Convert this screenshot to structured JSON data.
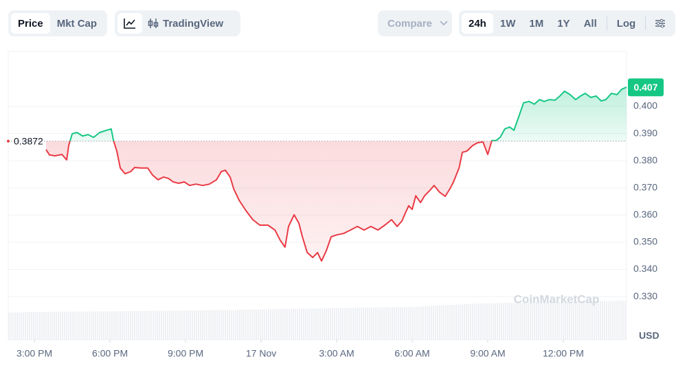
{
  "toolbar": {
    "price": "Price",
    "mkt_cap": "Mkt Cap",
    "trading_view": "TradingView",
    "compare": "Compare",
    "ranges": [
      "24h",
      "1W",
      "1M",
      "1Y",
      "All"
    ],
    "log": "Log"
  },
  "chart_data": {
    "type": "line",
    "currency": "USD",
    "watermark": "CoinMarketCap",
    "color_up": "#16c784",
    "color_down": "#ea3943",
    "reference_line": 0.3872,
    "current_price": 0.407,
    "xlim": [
      13.96,
      38.51
    ],
    "ylim": [
      0.3141,
      0.4202
    ],
    "xticks": [
      {
        "value": 15,
        "label": "3:00 PM"
      },
      {
        "value": 18,
        "label": "6:00 PM"
      },
      {
        "value": 21,
        "label": "9:00 PM"
      },
      {
        "value": 24,
        "label": "17 Nov"
      },
      {
        "value": 27,
        "label": "3:00 AM"
      },
      {
        "value": 30,
        "label": "6:00 AM"
      },
      {
        "value": 33,
        "label": "9:00 AM"
      },
      {
        "value": 36,
        "label": "12:00 PM"
      }
    ],
    "yticks": [
      {
        "value": 0.33,
        "label": "0.330"
      },
      {
        "value": 0.34,
        "label": "0.340"
      },
      {
        "value": 0.35,
        "label": "0.350"
      },
      {
        "value": 0.36,
        "label": "0.360"
      },
      {
        "value": 0.37,
        "label": "0.370"
      },
      {
        "value": 0.38,
        "label": "0.380"
      },
      {
        "value": 0.39,
        "label": "0.390"
      },
      {
        "value": 0.4,
        "label": "0.400"
      }
    ],
    "grid": true,
    "x": [
      15.46,
      15.6,
      15.82,
      16.09,
      16.28,
      16.36,
      16.5,
      16.69,
      16.91,
      17.13,
      17.35,
      17.59,
      17.86,
      18.05,
      18.14,
      18.27,
      18.41,
      18.6,
      18.82,
      18.98,
      19.23,
      19.5,
      19.69,
      19.91,
      20.13,
      20.32,
      20.51,
      20.73,
      20.95,
      21.16,
      21.41,
      21.68,
      21.95,
      22.23,
      22.42,
      22.58,
      22.77,
      22.91,
      23.13,
      23.4,
      23.67,
      23.95,
      24.27,
      24.55,
      24.76,
      24.95,
      25.09,
      25.31,
      25.5,
      25.64,
      25.83,
      26.05,
      26.24,
      26.4,
      26.59,
      26.78,
      27,
      27.27,
      27.55,
      27.82,
      28.09,
      28.36,
      28.64,
      28.91,
      29.18,
      29.4,
      29.59,
      29.73,
      29.86,
      30,
      30.14,
      30.33,
      30.49,
      30.68,
      30.87,
      31.09,
      31.31,
      31.5,
      31.64,
      31.86,
      31.99,
      32.18,
      32.4,
      32.59,
      32.81,
      33,
      33.16,
      33.33,
      33.49,
      33.68,
      33.87,
      34.04,
      34.23,
      34.42,
      34.64,
      34.85,
      35.05,
      35.24,
      35.45,
      35.67,
      35.86,
      36.05,
      36.27,
      36.49,
      36.68,
      36.87,
      37.09,
      37.31,
      37.5,
      37.69,
      37.91,
      38.13,
      38.32,
      38.51
    ],
    "values": [
      0.3841,
      0.3821,
      0.3818,
      0.3823,
      0.3803,
      0.3856,
      0.3899,
      0.3904,
      0.3891,
      0.3896,
      0.3886,
      0.3904,
      0.3912,
      0.3917,
      0.3874,
      0.3836,
      0.3773,
      0.3752,
      0.376,
      0.3775,
      0.3773,
      0.3773,
      0.3747,
      0.373,
      0.374,
      0.3735,
      0.3722,
      0.3717,
      0.3722,
      0.3709,
      0.3714,
      0.3709,
      0.3714,
      0.373,
      0.376,
      0.3765,
      0.374,
      0.3697,
      0.3654,
      0.3616,
      0.3583,
      0.3563,
      0.3563,
      0.3545,
      0.3507,
      0.3482,
      0.3558,
      0.3601,
      0.357,
      0.352,
      0.3462,
      0.3444,
      0.3462,
      0.3431,
      0.3469,
      0.352,
      0.3527,
      0.3532,
      0.3545,
      0.3558,
      0.3545,
      0.3558,
      0.3545,
      0.3563,
      0.3583,
      0.3558,
      0.3578,
      0.3608,
      0.3634,
      0.3621,
      0.3671,
      0.3646,
      0.3671,
      0.3689,
      0.3709,
      0.3684,
      0.3669,
      0.3697,
      0.3722,
      0.3773,
      0.3831,
      0.3836,
      0.3856,
      0.3866,
      0.3869,
      0.3823,
      0.3874,
      0.3874,
      0.3886,
      0.3917,
      0.3924,
      0.3912,
      0.3962,
      0.4013,
      0.4018,
      0.4008,
      0.4025,
      0.4018,
      0.4025,
      0.4023,
      0.4038,
      0.4056,
      0.4043,
      0.4025,
      0.4038,
      0.4048,
      0.4033,
      0.4038,
      0.402,
      0.4025,
      0.4048,
      0.4043,
      0.4063,
      0.4071
    ]
  }
}
